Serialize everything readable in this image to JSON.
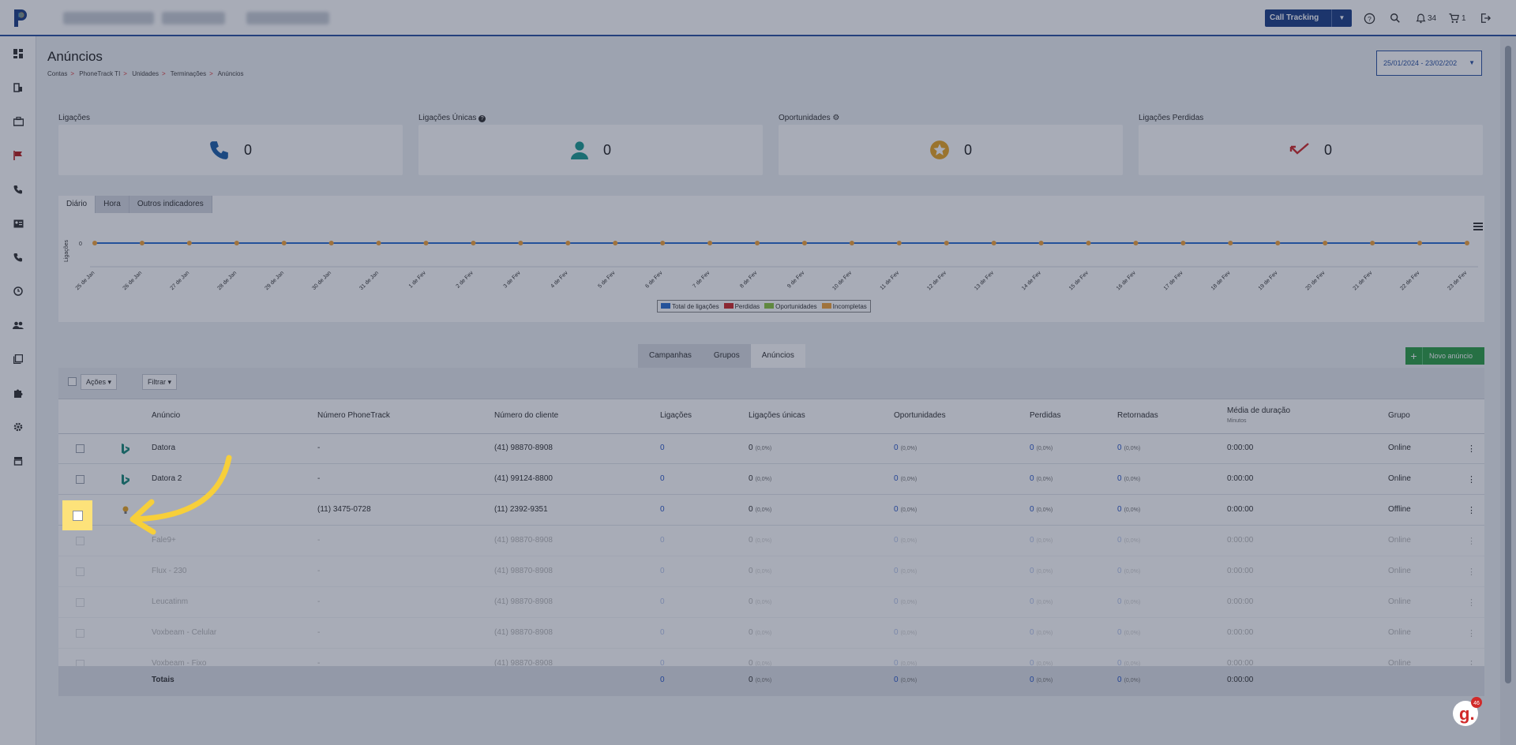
{
  "topbar": {
    "product_selector": "Call Tracking",
    "notifications_count": "34",
    "cart_count": "1"
  },
  "page": {
    "title": "Anúncios",
    "breadcrumb": [
      "Contas",
      "PhoneTrack TI",
      "Unidades",
      "Terminações",
      "Anúncios"
    ],
    "date_range": "25/01/2024 - 23/02/202"
  },
  "kpis": [
    {
      "label": "Ligações",
      "value": "0",
      "icon": "phone-icon"
    },
    {
      "label": "Ligações Únicas",
      "value": "0",
      "icon": "user-icon"
    },
    {
      "label": "Oportunidades",
      "value": "0",
      "icon": "star-icon"
    },
    {
      "label": "Ligações Perdidas",
      "value": "0",
      "icon": "missed-call-icon"
    }
  ],
  "chart_tabs": [
    "Diário",
    "Hora",
    "Outros indicadores"
  ],
  "chart_data": {
    "type": "line",
    "ylabel": "Ligações",
    "x": [
      "25 de Jan",
      "26 de Jan",
      "27 de Jan",
      "28 de Jan",
      "29 de Jan",
      "30 de Jan",
      "31 de Jan",
      "1 de Fev",
      "2 de Fev",
      "3 de Fev",
      "4 de Fev",
      "5 de Fev",
      "6 de Fev",
      "7 de Fev",
      "8 de Fev",
      "9 de Fev",
      "10 de Fev",
      "11 de Fev",
      "12 de Fev",
      "13 de Fev",
      "14 de Fev",
      "15 de Fev",
      "16 de Fev",
      "17 de Fev",
      "18 de Fev",
      "19 de Fev",
      "20 de Fev",
      "21 de Fev",
      "22 de Fev",
      "23 de Fev"
    ],
    "yticks": [
      "0"
    ],
    "series": [
      {
        "name": "Total de ligações",
        "color": "#2a6fd1",
        "values": [
          0,
          0,
          0,
          0,
          0,
          0,
          0,
          0,
          0,
          0,
          0,
          0,
          0,
          0,
          0,
          0,
          0,
          0,
          0,
          0,
          0,
          0,
          0,
          0,
          0,
          0,
          0,
          0,
          0,
          0
        ]
      },
      {
        "name": "Perdidas",
        "color": "#d12a2a",
        "values": [
          0,
          0,
          0,
          0,
          0,
          0,
          0,
          0,
          0,
          0,
          0,
          0,
          0,
          0,
          0,
          0,
          0,
          0,
          0,
          0,
          0,
          0,
          0,
          0,
          0,
          0,
          0,
          0,
          0,
          0
        ]
      },
      {
        "name": "Oportunidades",
        "color": "#8cc63f",
        "values": [
          0,
          0,
          0,
          0,
          0,
          0,
          0,
          0,
          0,
          0,
          0,
          0,
          0,
          0,
          0,
          0,
          0,
          0,
          0,
          0,
          0,
          0,
          0,
          0,
          0,
          0,
          0,
          0,
          0,
          0
        ]
      },
      {
        "name": "Incompletas",
        "color": "#f2a33a",
        "values": [
          0,
          0,
          0,
          0,
          0,
          0,
          0,
          0,
          0,
          0,
          0,
          0,
          0,
          0,
          0,
          0,
          0,
          0,
          0,
          0,
          0,
          0,
          0,
          0,
          0,
          0,
          0,
          0,
          0,
          0
        ]
      }
    ]
  },
  "table_tabs": [
    "Campanhas",
    "Grupos",
    "Anúncios"
  ],
  "new_button": "Novo anúncio",
  "toolbar": {
    "actions": "Ações",
    "filter": "Filtrar"
  },
  "columns": [
    "Anúncio",
    "Número PhoneTrack",
    "Número do cliente",
    "Ligações",
    "Ligações únicas",
    "Oportunidades",
    "Perdidas",
    "Retornadas",
    "Média de duração",
    "Grupo"
  ],
  "duration_sub": "Minutos",
  "rows": [
    {
      "name": "Datora",
      "pt": "-",
      "client": "(41) 98870-8908",
      "lig": "0",
      "uni": "0",
      "uni_pct": "(0,0%)",
      "opp": "0",
      "opp_pct": "(0,0%)",
      "perd": "0",
      "perd_pct": "(0,0%)",
      "ret": "0",
      "ret_pct": "(0,0%)",
      "dur": "0:00:00",
      "group": "Online",
      "icon": "bing-icon"
    },
    {
      "name": "Datora 2",
      "pt": "-",
      "client": "(41) 99124-8800",
      "lig": "0",
      "uni": "0",
      "uni_pct": "(0,0%)",
      "opp": "0",
      "opp_pct": "(0,0%)",
      "perd": "0",
      "perd_pct": "(0,0%)",
      "ret": "0",
      "ret_pct": "(0,0%)",
      "dur": "0:00:00",
      "group": "Online",
      "icon": "bing-icon"
    },
    {
      "name": "",
      "pt": "(11) 3475-0728",
      "client": "(11) 2392-9351",
      "lig": "0",
      "uni": "0",
      "uni_pct": "(0,0%)",
      "opp": "0",
      "opp_pct": "(0,0%)",
      "perd": "0",
      "perd_pct": "(0,0%)",
      "ret": "0",
      "ret_pct": "(0,0%)",
      "dur": "0:00:00",
      "group": "Offline",
      "icon": "bulb-icon"
    },
    {
      "name": "Fale9+",
      "pt": "-",
      "client": "(41) 98870-8908",
      "lig": "0",
      "uni": "0",
      "uni_pct": "(0,0%)",
      "opp": "0",
      "opp_pct": "(0,0%)",
      "perd": "0",
      "perd_pct": "(0,0%)",
      "ret": "0",
      "ret_pct": "(0,0%)",
      "dur": "0:00:00",
      "group": "Online",
      "icon": ""
    },
    {
      "name": "Flux - 230",
      "pt": "-",
      "client": "(41) 98870-8908",
      "lig": "0",
      "uni": "0",
      "uni_pct": "(0,0%)",
      "opp": "0",
      "opp_pct": "(0,0%)",
      "perd": "0",
      "perd_pct": "(0,0%)",
      "ret": "0",
      "ret_pct": "(0,0%)",
      "dur": "0:00:00",
      "group": "Online",
      "icon": ""
    },
    {
      "name": "Leucatinm",
      "pt": "-",
      "client": "(41) 98870-8908",
      "lig": "0",
      "uni": "0",
      "uni_pct": "(0,0%)",
      "opp": "0",
      "opp_pct": "(0,0%)",
      "perd": "0",
      "perd_pct": "(0,0%)",
      "ret": "0",
      "ret_pct": "(0,0%)",
      "dur": "0:00:00",
      "group": "Online",
      "icon": ""
    },
    {
      "name": "Voxbeam - Celular",
      "pt": "-",
      "client": "(41) 98870-8908",
      "lig": "0",
      "uni": "0",
      "uni_pct": "(0,0%)",
      "opp": "0",
      "opp_pct": "(0,0%)",
      "perd": "0",
      "perd_pct": "(0,0%)",
      "ret": "0",
      "ret_pct": "(0,0%)",
      "dur": "0:00:00",
      "group": "Online",
      "icon": ""
    },
    {
      "name": "Voxbeam - Fixo",
      "pt": "-",
      "client": "(41) 98870-8908",
      "lig": "0",
      "uni": "0",
      "uni_pct": "(0,0%)",
      "opp": "0",
      "opp_pct": "(0,0%)",
      "perd": "0",
      "perd_pct": "(0,0%)",
      "ret": "0",
      "ret_pct": "(0,0%)",
      "dur": "0:00:00",
      "group": "Online",
      "icon": ""
    }
  ],
  "totals": {
    "label": "Totais",
    "lig": "0",
    "uni": "0",
    "uni_pct": "(0,0%)",
    "opp": "0",
    "opp_pct": "(0,0%)",
    "perd": "0",
    "perd_pct": "(0,0%)",
    "ret": "0",
    "ret_pct": "(0,0%)",
    "dur": "0:00:00"
  },
  "badge_count": "46"
}
